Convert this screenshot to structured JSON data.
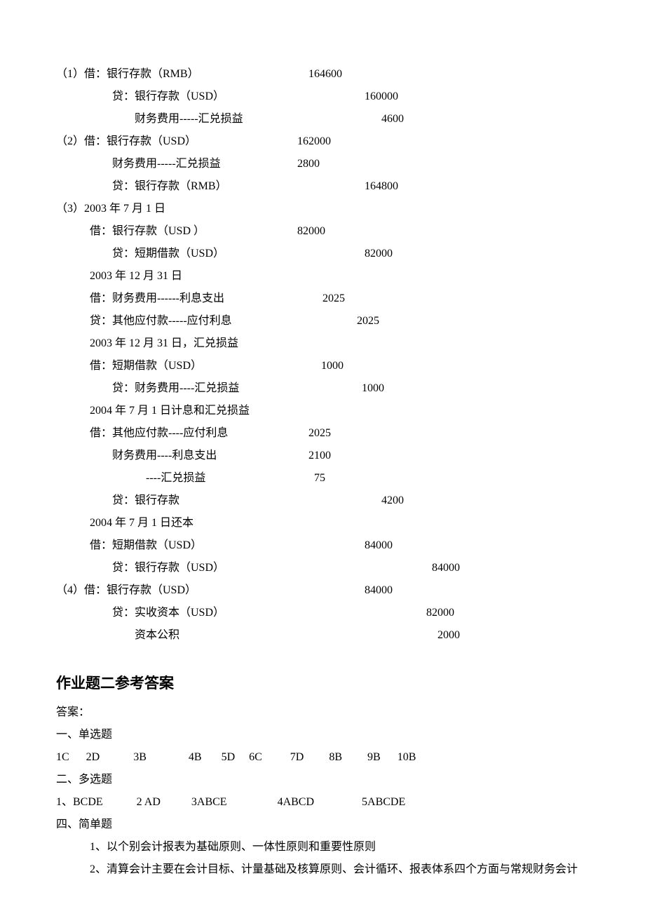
{
  "entries": [
    {
      "text": "（1）借：银行存款（RMB）",
      "amount": "164600",
      "indent": 0,
      "textWidth": 360,
      "amountPad": 0
    },
    {
      "text": "贷：银行存款（USD）",
      "amount": "160000",
      "indent": 2,
      "textWidth": 280,
      "amountPad": 80
    },
    {
      "text": "财务费用-----汇兑损益",
      "amount": "4600",
      "indent": 3,
      "textWidth": 248,
      "amountPad": 104
    },
    {
      "text": "（2）借：银行存款（USD）",
      "amount": "162000",
      "indent": 0,
      "textWidth": 344,
      "amountPad": 0
    },
    {
      "text": "财务费用-----汇兑损益",
      "amount": "2800",
      "indent": 2,
      "textWidth": 264,
      "amountPad": 0
    },
    {
      "text": "贷：银行存款（RMB）",
      "amount": "164800",
      "indent": 2,
      "textWidth": 280,
      "amountPad": 80
    },
    {
      "text": "（3）2003 年 7 月 1 日",
      "amount": "",
      "indent": 0,
      "textWidth": 300,
      "amountPad": 0
    },
    {
      "text": "借：银行存款（USD ）",
      "amount": "82000",
      "indent": 1,
      "textWidth": 296,
      "amountPad": 0
    },
    {
      "text": "贷：短期借款（USD）",
      "amount": "82000",
      "indent": 2,
      "textWidth": 264,
      "amountPad": 96
    },
    {
      "text": "2003 年 12 月 31 日",
      "amount": "",
      "indent": 1,
      "textWidth": 300,
      "amountPad": 0
    },
    {
      "text": "借：财务费用------利息支出",
      "amount": "2025",
      "indent": 1,
      "textWidth": 312,
      "amountPad": 20
    },
    {
      "text": "贷：其他应付款-----应付利息",
      "amount": "2025",
      "indent": 1,
      "textWidth": 333,
      "amountPad": 48
    },
    {
      "text": "2003 年 12 月 31 日，汇兑损益",
      "amount": "",
      "indent": 1,
      "textWidth": 300,
      "amountPad": 0
    },
    {
      "text": "借：短期借款（USD）",
      "amount": "1000",
      "indent": 1,
      "textWidth": 330,
      "amountPad": 0
    },
    {
      "text": "贷：财务费用----汇兑损益",
      "amount": "1000",
      "indent": 2,
      "textWidth": 308,
      "amountPad": 48
    },
    {
      "text": "2004 年 7 月 1 日计息和汇兑损益",
      "amount": "",
      "indent": 1,
      "textWidth": 300,
      "amountPad": 0
    },
    {
      "text": "借：其他应付款----应付利息",
      "amount": "2025",
      "indent": 1,
      "textWidth": 312,
      "amountPad": 0
    },
    {
      "text": "财务费用----利息支出",
      "amount": "2100",
      "indent": 2,
      "textWidth": 280,
      "amountPad": 0
    },
    {
      "text": "----汇兑损益",
      "amount": "75",
      "indent": 4,
      "textWidth": 240,
      "amountPad": 0
    },
    {
      "text": "贷：银行存款",
      "amount": "4200",
      "indent": 2,
      "textWidth": 264,
      "amountPad": 120
    },
    {
      "text": "2004 年 7 月 1 日还本",
      "amount": "",
      "indent": 1,
      "textWidth": 300,
      "amountPad": 0
    },
    {
      "text": "借：短期借款（USD）",
      "amount": "84000",
      "indent": 1,
      "textWidth": 296,
      "amountPad": 96
    },
    {
      "text": "贷：银行存款（USD）",
      "amount": "84000",
      "indent": 2,
      "textWidth": 264,
      "amountPad": 192
    },
    {
      "text": "（4）借：银行存款（USD）",
      "amount": "84000",
      "indent": 0,
      "textWidth": 344,
      "amountPad": 96
    },
    {
      "text": "贷：实收资本（USD）",
      "amount": "82000",
      "indent": 2,
      "textWidth": 264,
      "amountPad": 184
    },
    {
      "text": "资本公积",
      "amount": "2000",
      "indent": 3,
      "textWidth": 232,
      "amountPad": 200
    }
  ],
  "section2": {
    "title": "作业题二参考答案",
    "answerLabel": "答案：",
    "singleChoiceLabel": "一、单选题",
    "singleChoice": "1C      2D            3B               4B       5D     6C          7D         8B         9B      10B",
    "multiChoiceLabel": "二、多选题",
    "multiChoice": "1、BCDE            2 AD           3ABCE                  4ABCD                 5ABCDE",
    "shortAnswerLabel": "四、简单题",
    "shortAnswers": [
      "1、以个别会计报表为基础原则、一体性原则和重要性原则",
      "2、清算会计主要在会计目标、计量基础及核算原则、会计循环、报表体系四个方面与常规财务会计"
    ]
  }
}
